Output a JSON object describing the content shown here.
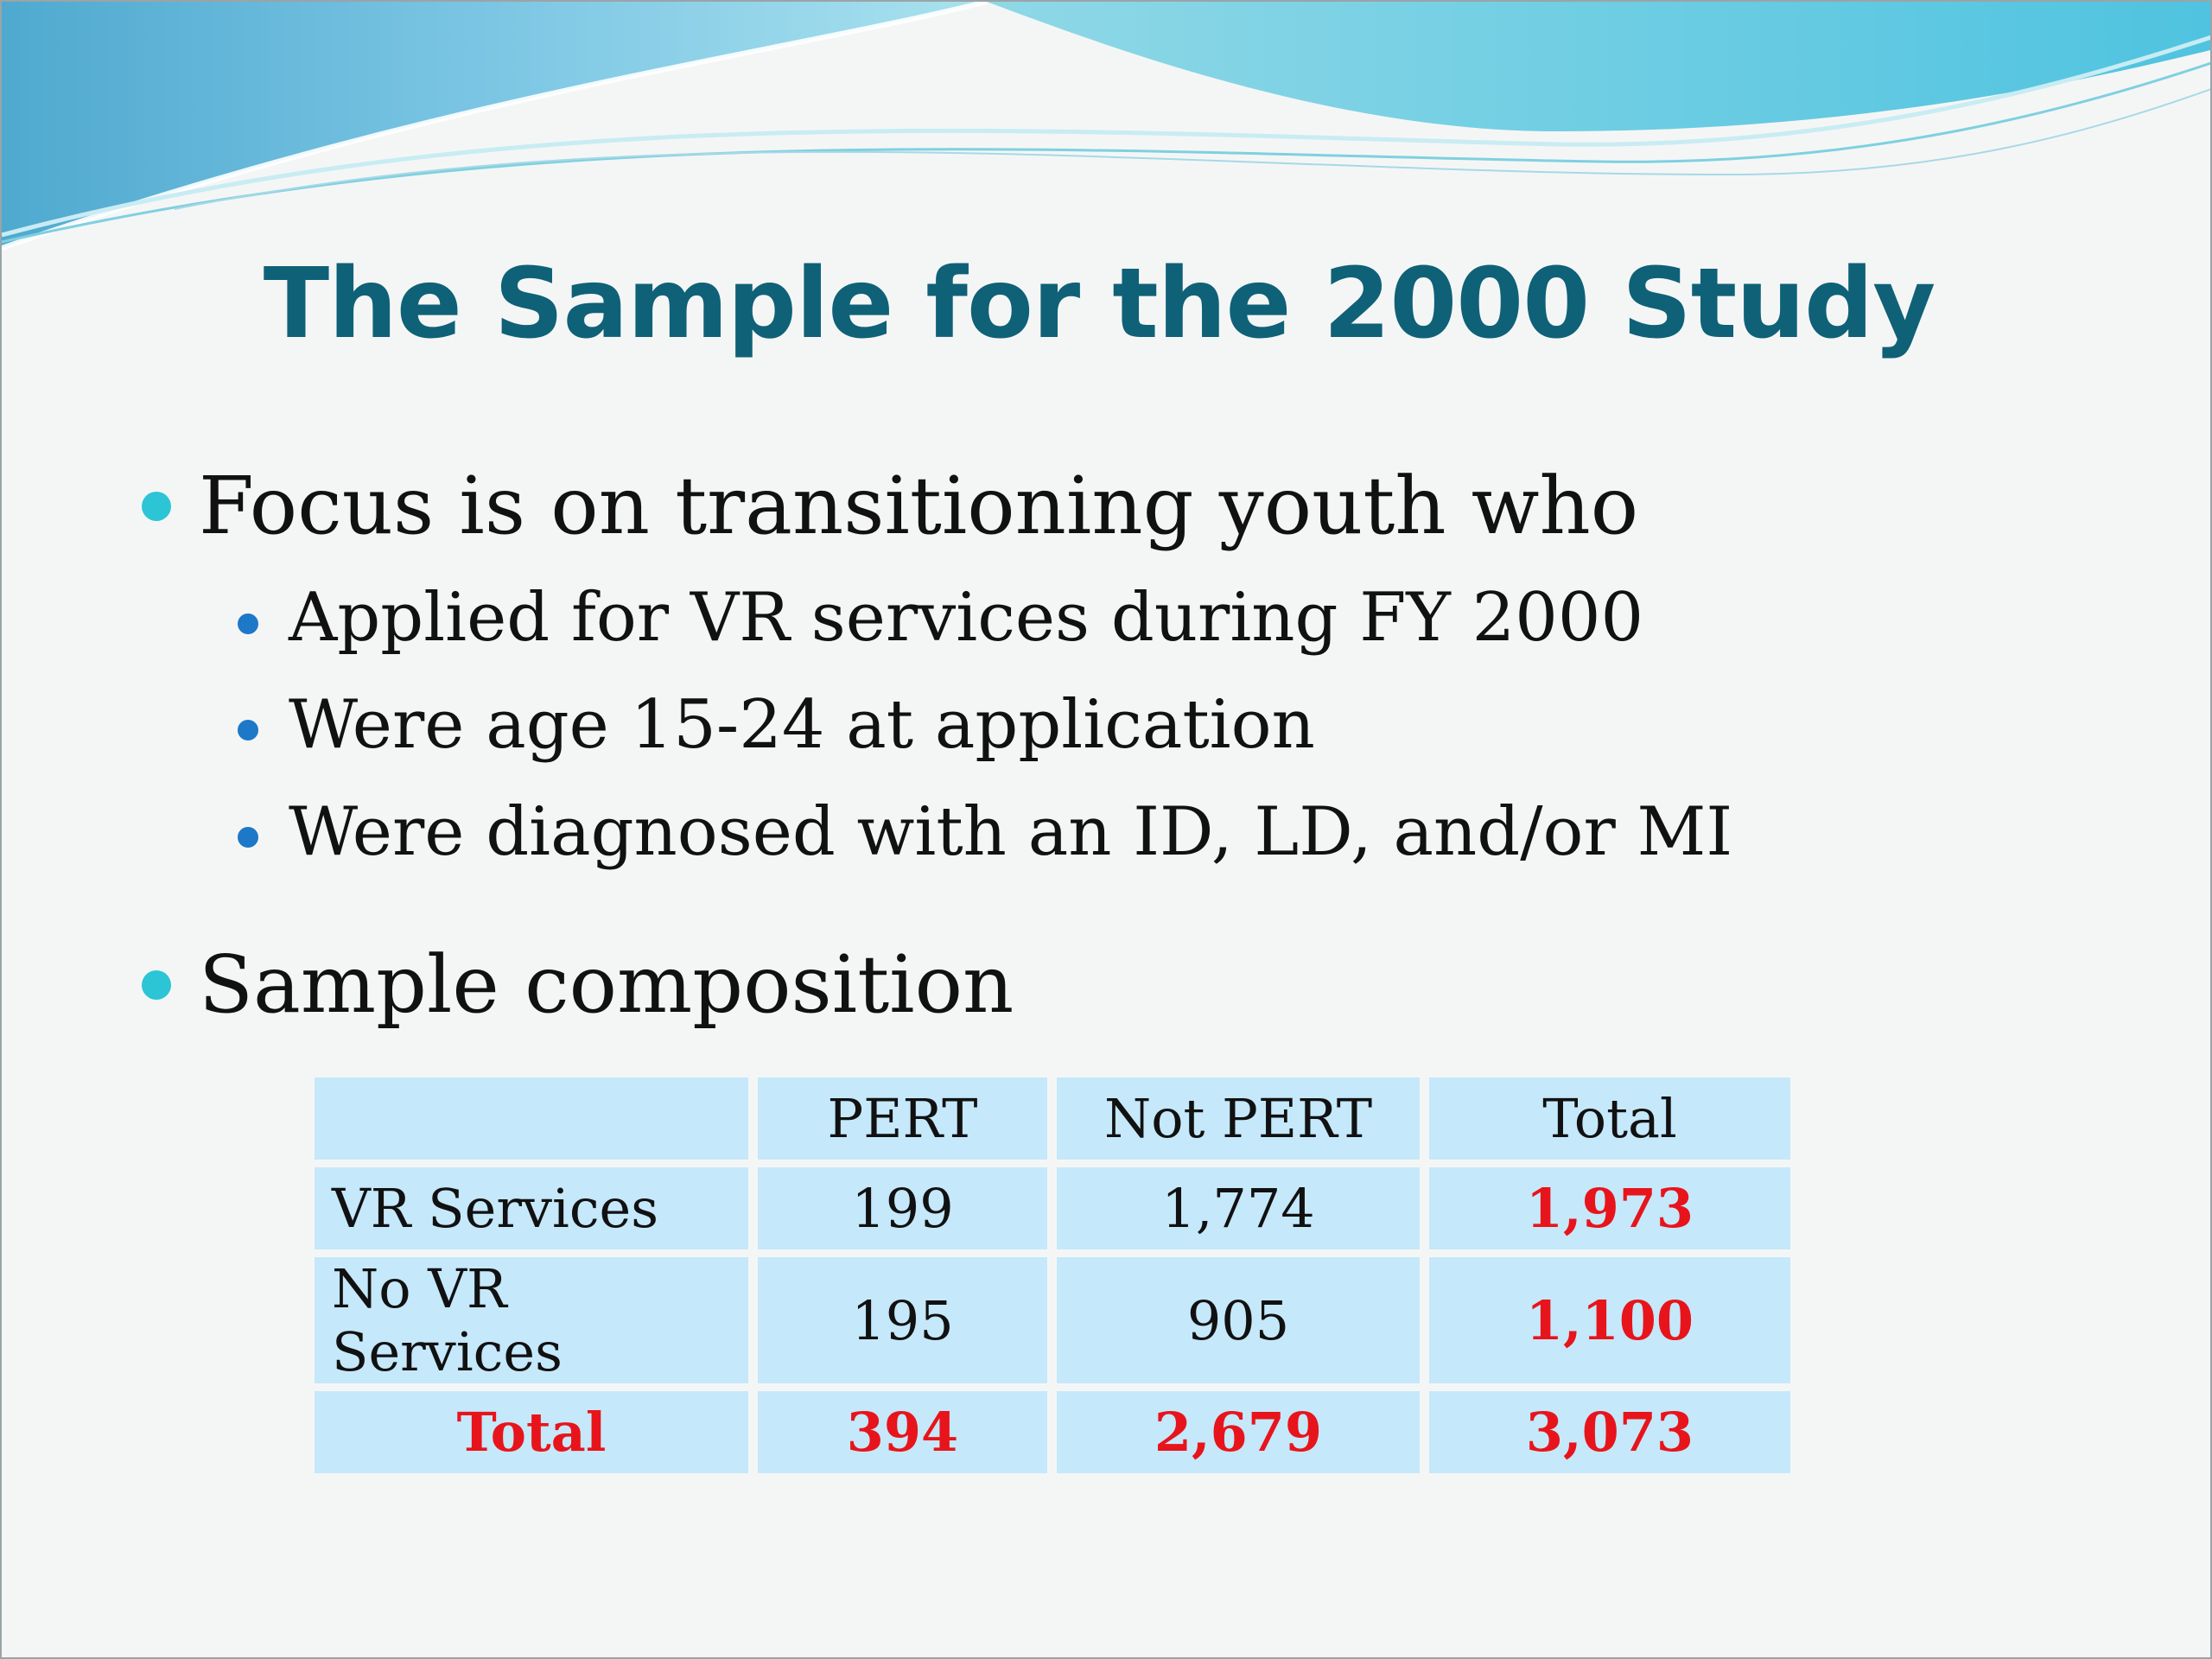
{
  "slide": {
    "title": "The Sample for the 2000 Study",
    "bullets": [
      {
        "text": "Focus is on transitioning youth who",
        "sub": [
          "Applied for VR services during FY 2000",
          "Were age 15-24 at application",
          "Were diagnosed with an ID, LD, and/or MI"
        ]
      },
      {
        "text": "Sample composition"
      }
    ],
    "table": {
      "headers": [
        "",
        "PERT",
        "Not PERT",
        "Total"
      ],
      "rows": [
        [
          "VR Services",
          "199",
          "1,774",
          "1,973"
        ],
        [
          "No VR Services",
          "195",
          "905",
          "1,100"
        ],
        [
          "Total",
          "394",
          "2,679",
          "3,073"
        ]
      ]
    },
    "colors": {
      "title": "#0f6177",
      "bullet_level1": "#2bc5d6",
      "bullet_level2": "#1d78c8",
      "table_cell": "#c5e8fb",
      "highlight": "#e8141b"
    }
  }
}
